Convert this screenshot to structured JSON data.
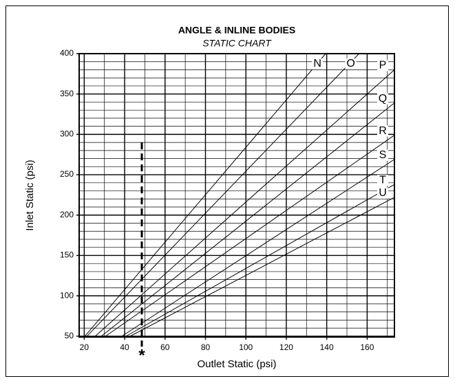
{
  "chart_data": {
    "type": "line",
    "title": "ANGLE & INLINE BODIES",
    "subtitle": "STATIC CHART",
    "x_label": "Outlet Static (psi)",
    "y_label": "Inlet Static (psi)",
    "xlim": [
      17.5,
      173.5
    ],
    "ylim": [
      49,
      400
    ],
    "xticks": [
      20,
      40,
      60,
      80,
      100,
      120,
      140,
      160
    ],
    "yticks": [
      50,
      100,
      150,
      200,
      250,
      300,
      350,
      400
    ],
    "x_minor_ticks": [
      30,
      50,
      70,
      90,
      110,
      130,
      150,
      170
    ],
    "y_minor_ticks": [
      60,
      70,
      80,
      90,
      110,
      120,
      130,
      140,
      160,
      170,
      180,
      190,
      210,
      220,
      230,
      240,
      260,
      270,
      280,
      290,
      310,
      320,
      330,
      340,
      360,
      370,
      380,
      390
    ],
    "grid": true,
    "series": [
      {
        "name": "N",
        "color": "#000000",
        "x": [
          20,
          139.5
        ],
        "values": [
          49,
          400
        ]
      },
      {
        "name": "O",
        "color": "#000000",
        "x": [
          21,
          156
        ],
        "values": [
          49,
          400
        ]
      },
      {
        "name": "P",
        "color": "#000000",
        "x": [
          25,
          173.5
        ],
        "values": [
          49,
          380
        ]
      },
      {
        "name": "Q",
        "color": "#000000",
        "x": [
          28,
          173.5
        ],
        "values": [
          49,
          339
        ]
      },
      {
        "name": "R",
        "color": "#000000",
        "x": [
          30,
          173.5
        ],
        "values": [
          49,
          299
        ]
      },
      {
        "name": "S",
        "color": "#000000",
        "x": [
          38,
          173.5
        ],
        "values": [
          49,
          269
        ]
      },
      {
        "name": "T",
        "color": "#000000",
        "x": [
          40,
          173.5
        ],
        "values": [
          49,
          238
        ]
      },
      {
        "name": "U",
        "color": "#000000",
        "x": [
          42,
          173.5
        ],
        "values": [
          49,
          222
        ]
      }
    ],
    "reference_line": {
      "x": 48.5,
      "y_top": 290,
      "marker": "*"
    }
  }
}
